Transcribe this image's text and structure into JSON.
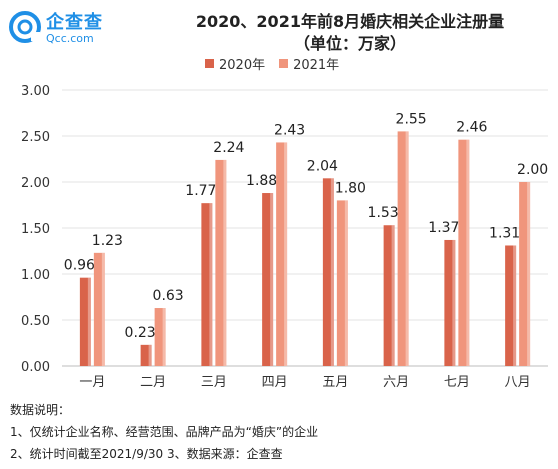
{
  "brand": {
    "name": "企查查",
    "domain": "Qcc.com",
    "color": "#1f8fe6"
  },
  "chart_data": {
    "type": "bar",
    "title": "2020、2021年前8月婚庆相关企业注册量",
    "subtitle": "（单位：万家）",
    "categories": [
      "一月",
      "二月",
      "三月",
      "四月",
      "五月",
      "六月",
      "七月",
      "八月"
    ],
    "series": [
      {
        "name": "2020年",
        "values": [
          0.96,
          0.23,
          1.77,
          1.88,
          2.04,
          1.53,
          1.37,
          1.31
        ],
        "color": "#d9634a"
      },
      {
        "name": "2021年",
        "values": [
          1.23,
          0.63,
          2.24,
          2.43,
          1.8,
          2.55,
          2.46,
          2.0
        ],
        "color": "#f0957c"
      }
    ],
    "ylim": [
      0,
      3.0
    ],
    "yticks": [
      "0.00",
      "0.50",
      "1.00",
      "1.50",
      "2.00",
      "2.50",
      "3.00"
    ],
    "grid": true,
    "legend_position": "top-center"
  },
  "notes": {
    "heading": "数据说明：",
    "line1": "1、仅统计企业名称、经营范围、品牌产品为“婚庆”的企业",
    "line2": "2、统计时间截至2021/9/30    3、数据来源：企查查"
  }
}
